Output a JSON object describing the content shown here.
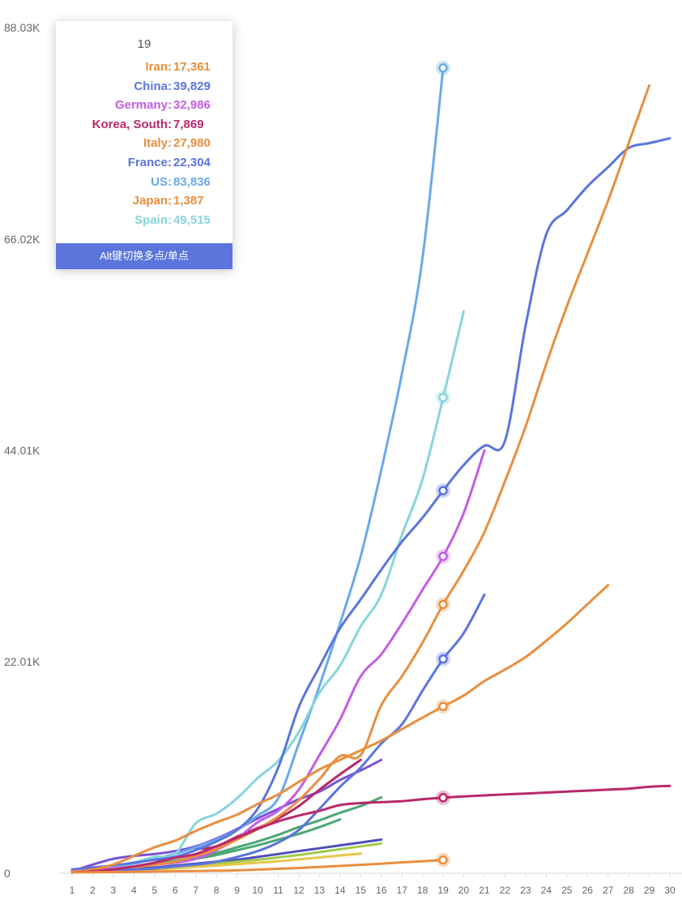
{
  "chart_data": {
    "type": "line",
    "x": [
      1,
      2,
      3,
      4,
      5,
      6,
      7,
      8,
      9,
      10,
      11,
      12,
      13,
      14,
      15,
      16,
      17,
      18,
      19,
      20,
      21,
      22,
      23,
      24,
      25,
      26,
      27,
      28,
      29,
      30
    ],
    "xtick_labels": [
      "1",
      "2",
      "3",
      "4",
      "5",
      "6",
      "7",
      "8",
      "9",
      "10",
      "11",
      "12",
      "13",
      "14",
      "15",
      "16",
      "17",
      "18",
      "19",
      "20",
      "21",
      "22",
      "23",
      "24",
      "25",
      "26",
      "27",
      "28",
      "29",
      "30"
    ],
    "ytick_labels": [
      "0",
      "22.01K",
      "44.01K",
      "66.02K",
      "88.03K"
    ],
    "ytick_values": [
      0,
      22010,
      44010,
      66020,
      88030
    ],
    "ylim": [
      0,
      88030
    ],
    "xlim": [
      1,
      30.6
    ],
    "highlight_x": 19,
    "series": [
      {
        "name": "US",
        "color": "#6aaae8",
        "values": [
          100,
          300,
          600,
          1000,
          1500,
          2000,
          2700,
          3500,
          4500,
          6000,
          7800,
          13500,
          19500,
          26000,
          33000,
          42000,
          52000,
          64000,
          83836,
          null,
          null,
          null,
          null,
          null,
          null,
          null,
          null,
          null,
          null,
          null
        ]
      },
      {
        "name": "Spain",
        "color": "#86d5db",
        "values": [
          200,
          400,
          700,
          1100,
          1700,
          2000,
          5200,
          6200,
          7800,
          9900,
          11700,
          14700,
          18800,
          21600,
          25700,
          29000,
          35200,
          41000,
          49515,
          58500,
          null,
          null,
          null,
          null,
          null,
          null,
          null,
          null,
          null,
          null
        ]
      },
      {
        "name": "China",
        "color": "#5b75dd",
        "values": [
          400,
          600,
          800,
          1100,
          1400,
          1700,
          2400,
          3300,
          4500,
          6700,
          11000,
          17300,
          21500,
          25500,
          28500,
          31600,
          34500,
          37000,
          39829,
          42500,
          44500,
          45000,
          57000,
          66500,
          69000,
          71500,
          73500,
          75500,
          76000,
          76500
        ]
      },
      {
        "name": "Germany",
        "color": "#c25de6",
        "values": [
          200,
          300,
          500,
          700,
          900,
          1100,
          1500,
          2400,
          3600,
          5300,
          6500,
          8700,
          12300,
          16000,
          20500,
          22800,
          26000,
          29500,
          32986,
          37500,
          44000,
          null,
          null,
          null,
          null,
          null,
          null,
          null,
          null,
          null
        ]
      },
      {
        "name": "Italy",
        "color": "#ea8e3f",
        "values": [
          100,
          200,
          400,
          600,
          900,
          1200,
          1800,
          2500,
          3500,
          4600,
          5900,
          7600,
          9800,
          12200,
          12300,
          17500,
          20500,
          24000,
          27980,
          31500,
          35500,
          40800,
          46500,
          53000,
          59000,
          64500,
          70000,
          76000,
          82000,
          null
        ]
      },
      {
        "name": "France",
        "color": "#5b75dd",
        "values": [
          100,
          200,
          300,
          400,
          500,
          700,
          900,
          1200,
          1700,
          2300,
          3200,
          4500,
          6700,
          9000,
          11000,
          13500,
          15500,
          19000,
          22304,
          25000,
          29000,
          null,
          null,
          null,
          null,
          null,
          null,
          null,
          null,
          null
        ]
      },
      {
        "name": "Iran",
        "color": "#ea8e3f",
        "values": [
          150,
          400,
          900,
          1800,
          2700,
          3400,
          4400,
          5300,
          6100,
          7200,
          8200,
          9500,
          10800,
          11800,
          12800,
          13800,
          15000,
          16200,
          17361,
          18500,
          20000,
          21200,
          22500,
          24200,
          26000,
          28000,
          30000,
          null,
          null,
          null
        ]
      },
      {
        "name": "Korea, South",
        "color": "#b8296b",
        "values": [
          100,
          200,
          400,
          700,
          1100,
          1600,
          2000,
          2800,
          3700,
          4600,
          5400,
          6000,
          6500,
          7100,
          7300,
          7400,
          7500,
          7700,
          7869,
          8000,
          8100,
          8200,
          8300,
          8400,
          8500,
          8600,
          8700,
          8800,
          9000,
          9100
        ]
      },
      {
        "name": "Japan",
        "color": "#ea8e3f",
        "values": [
          100,
          110,
          130,
          150,
          180,
          200,
          230,
          260,
          300,
          380,
          460,
          550,
          650,
          760,
          880,
          1000,
          1130,
          1250,
          1387,
          null,
          null,
          null,
          null,
          null,
          null,
          null,
          null,
          null,
          null,
          null
        ]
      },
      {
        "name": "",
        "color": "#7a52d6",
        "values": [
          200,
          900,
          1500,
          1800,
          2000,
          2300,
          2800,
          3600,
          4600,
          5700,
          6700,
          7700,
          8500,
          9700,
          10700,
          11800,
          null,
          null,
          null,
          null,
          null,
          null,
          null,
          null,
          null,
          null,
          null,
          null,
          null,
          null
        ]
      },
      {
        "name": "",
        "color": "#b8296b",
        "values": [
          null,
          null,
          null,
          null,
          null,
          null,
          2500,
          2800,
          3800,
          4700,
          5700,
          7000,
          8700,
          10300,
          11800,
          null,
          null,
          null,
          null,
          null,
          null,
          null,
          null,
          null,
          null,
          null,
          null,
          null,
          null,
          null
        ]
      },
      {
        "name": "",
        "color": "#4ba874",
        "values": [
          100,
          200,
          400,
          600,
          900,
          1300,
          1700,
          2100,
          2700,
          3300,
          4000,
          4800,
          5500,
          6300,
          7000,
          7900,
          null,
          null,
          null,
          null,
          null,
          null,
          null,
          null,
          null,
          null,
          null,
          null,
          null,
          null
        ]
      },
      {
        "name": "",
        "color": "#4ba874",
        "values": [
          100,
          200,
          400,
          600,
          900,
          1200,
          1500,
          1900,
          2400,
          2900,
          3500,
          4100,
          4800,
          5600,
          null,
          null,
          null,
          null,
          null,
          null,
          null,
          null,
          null,
          null,
          null,
          null,
          null,
          null,
          null,
          null
        ]
      },
      {
        "name": "",
        "color": "#4c4fb8",
        "values": [
          100,
          200,
          300,
          450,
          600,
          800,
          1000,
          1200,
          1400,
          1700,
          2000,
          2300,
          2600,
          2900,
          3200,
          3500,
          null,
          null,
          null,
          null,
          null,
          null,
          null,
          null,
          null,
          null,
          null,
          null,
          null,
          null
        ]
      },
      {
        "name": "",
        "color": "#a3c94a",
        "values": [
          100,
          150,
          250,
          350,
          500,
          650,
          800,
          1000,
          1200,
          1400,
          1650,
          1900,
          2200,
          2500,
          2800,
          3100,
          null,
          null,
          null,
          null,
          null,
          null,
          null,
          null,
          null,
          null,
          null,
          null,
          null,
          null
        ]
      },
      {
        "name": "",
        "color": "#e5c84a",
        "values": [
          100,
          150,
          200,
          300,
          400,
          500,
          650,
          800,
          950,
          1100,
          1250,
          1450,
          1650,
          1850,
          2050,
          null,
          null,
          null,
          null,
          null,
          null,
          null,
          null,
          null,
          null,
          null,
          null,
          null,
          null,
          null
        ]
      }
    ],
    "markers_at_highlight": [
      "US",
      "Spain",
      "China",
      "Germany",
      "Italy",
      "France",
      "Iran",
      "Korea, South",
      "Japan"
    ],
    "grid": false,
    "legend": "none"
  },
  "tooltip": {
    "title": "19",
    "separator": ":",
    "rows": [
      {
        "name": "Iran",
        "value": "17,361",
        "color": "#ea8e3f"
      },
      {
        "name": "China",
        "value": "39,829",
        "color": "#5b75dd"
      },
      {
        "name": "Germany",
        "value": "32,986",
        "color": "#c25de6"
      },
      {
        "name": "Korea, South",
        "value": "7,869",
        "color": "#b8296b"
      },
      {
        "name": "Italy",
        "value": "27,980",
        "color": "#ea8e3f"
      },
      {
        "name": "France",
        "value": "22,304",
        "color": "#5b75dd"
      },
      {
        "name": "US",
        "value": "83,836",
        "color": "#6aaae8"
      },
      {
        "name": "Japan",
        "value": "1,387",
        "color": "#ea8e3f"
      },
      {
        "name": "Spain",
        "value": "49,515",
        "color": "#86d5db"
      }
    ],
    "footer": "Alt键切换多点/单点"
  }
}
